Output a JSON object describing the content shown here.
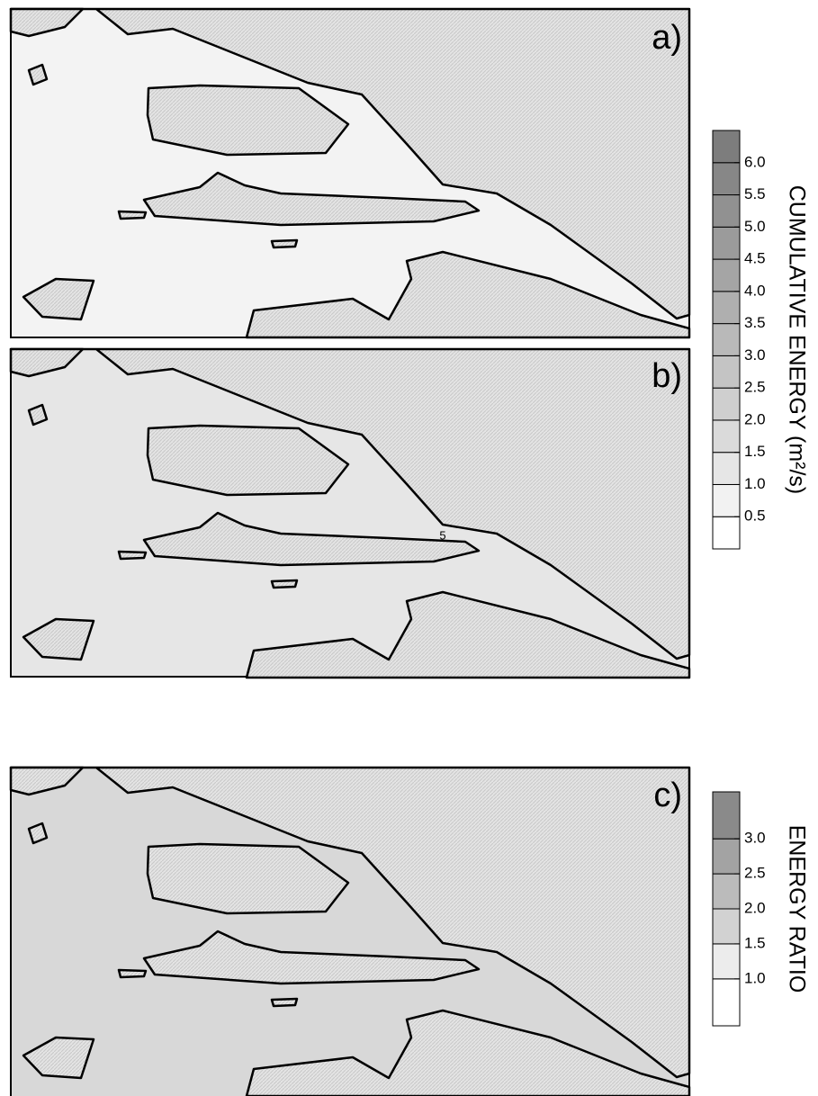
{
  "panels": [
    {
      "label": "a)"
    },
    {
      "label": "b)",
      "contour_label": "5"
    },
    {
      "label": "c)"
    }
  ],
  "colorbars": [
    {
      "title": "CUMULATIVE ENERGY (m²/s)",
      "range": [
        0,
        6.5
      ],
      "ticks": [
        {
          "value": 0.5,
          "label": "0.5"
        },
        {
          "value": 1,
          "label": "1.0"
        },
        {
          "value": 1.5,
          "label": "1.5"
        },
        {
          "value": 2,
          "label": "2.0"
        },
        {
          "value": 2.5,
          "label": "2.5"
        },
        {
          "value": 3,
          "label": "3.0"
        },
        {
          "value": 3.5,
          "label": "3.5"
        },
        {
          "value": 4,
          "label": "4.0"
        },
        {
          "value": 4.5,
          "label": "4.5"
        },
        {
          "value": 5,
          "label": "5.0"
        },
        {
          "value": 5.5,
          "label": "5.5"
        },
        {
          "value": 6,
          "label": "6.0"
        }
      ],
      "colors": [
        "#ffffff",
        "#f2f2f2",
        "#e6e6e6",
        "#dadada",
        "#cfcfcf",
        "#c4c4c4",
        "#b9b9b9",
        "#afafaf",
        "#a5a5a5",
        "#9b9b9b",
        "#919191",
        "#878787",
        "#7d7d7d"
      ]
    },
    {
      "title": "ENERGY RATIO",
      "range": [
        0.33,
        3.67
      ],
      "ticks": [
        {
          "value": 1,
          "label": "1.0"
        },
        {
          "value": 1.5,
          "label": "1.5"
        },
        {
          "value": 2,
          "label": "2.0"
        },
        {
          "value": 2.5,
          "label": "2.5"
        },
        {
          "value": 3,
          "label": "3.0"
        }
      ],
      "colors": [
        "#ffffff",
        "#ececec",
        "#d2d2d2",
        "#bbbbbb",
        "#a3a3a3",
        "#8a8a8a"
      ]
    }
  ]
}
